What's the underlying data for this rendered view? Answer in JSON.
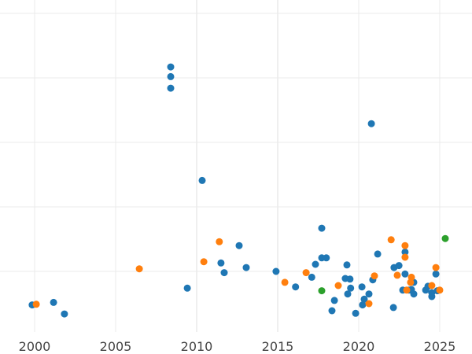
{
  "chart_data": {
    "type": "scatter",
    "title": "",
    "xlabel": "",
    "ylabel": "",
    "xlim": [
      1998.15,
      2026.5
    ],
    "ylim": [
      0,
      5.2
    ],
    "x_ticks": [
      2000,
      2005,
      2010,
      2015,
      2020,
      2025
    ],
    "x_tick_labels": [
      "2000",
      "2005",
      "2010",
      "2015",
      "2020",
      "2025"
    ],
    "y_gridlines": [
      1,
      2,
      3,
      4,
      5
    ],
    "y_tick_labels_visible": false,
    "grid": true,
    "legend": null,
    "series": [
      {
        "name": "blue",
        "color": "#1f77b4",
        "points": [
          [
            1999.85,
            0.48
          ],
          [
            2001.17,
            0.52
          ],
          [
            2001.84,
            0.34
          ],
          [
            2008.4,
            4.17
          ],
          [
            2008.4,
            4.02
          ],
          [
            2008.4,
            3.84
          ],
          [
            2009.42,
            0.74
          ],
          [
            2010.34,
            2.41
          ],
          [
            2011.5,
            1.13
          ],
          [
            2011.7,
            0.98
          ],
          [
            2012.62,
            1.4
          ],
          [
            2013.06,
            1.06
          ],
          [
            2014.9,
            1.0
          ],
          [
            2016.1,
            0.76
          ],
          [
            2017.1,
            0.91
          ],
          [
            2017.33,
            1.11
          ],
          [
            2017.72,
            1.67
          ],
          [
            2017.72,
            1.21
          ],
          [
            2018.0,
            1.21
          ],
          [
            2018.35,
            0.39
          ],
          [
            2018.5,
            0.55
          ],
          [
            2019.17,
            0.89
          ],
          [
            2019.27,
            1.1
          ],
          [
            2019.46,
            0.88
          ],
          [
            2019.5,
            0.74
          ],
          [
            2019.32,
            0.65
          ],
          [
            2019.81,
            0.35
          ],
          [
            2020.2,
            0.76
          ],
          [
            2020.24,
            0.48
          ],
          [
            2020.34,
            0.57
          ],
          [
            2020.63,
            0.65
          ],
          [
            2020.78,
            3.29
          ],
          [
            2020.87,
            0.87
          ],
          [
            2021.17,
            1.27
          ],
          [
            2022.14,
            0.44
          ],
          [
            2022.18,
            1.06
          ],
          [
            2022.48,
            1.09
          ],
          [
            2022.72,
            0.71
          ],
          [
            2022.86,
            1.3
          ],
          [
            2022.86,
            0.96
          ],
          [
            2023.1,
            0.71
          ],
          [
            2023.25,
            0.72
          ],
          [
            2023.4,
            0.65
          ],
          [
            2023.4,
            0.83
          ],
          [
            2024.13,
            0.71
          ],
          [
            2024.27,
            0.77
          ],
          [
            2024.51,
            0.61
          ],
          [
            2024.51,
            0.67
          ],
          [
            2024.76,
            0.96
          ],
          [
            2024.85,
            0.7
          ]
        ]
      },
      {
        "name": "orange",
        "color": "#ff7f0e",
        "points": [
          [
            2000.1,
            0.49
          ],
          [
            2006.46,
            1.04
          ],
          [
            2010.44,
            1.15
          ],
          [
            2011.4,
            1.46
          ],
          [
            2015.44,
            0.83
          ],
          [
            2016.75,
            0.98
          ],
          [
            2018.74,
            0.78
          ],
          [
            2020.63,
            0.5
          ],
          [
            2020.97,
            0.93
          ],
          [
            2022.0,
            1.49
          ],
          [
            2022.38,
            0.94
          ],
          [
            2022.86,
            1.4
          ],
          [
            2022.86,
            1.22
          ],
          [
            2022.96,
            0.71
          ],
          [
            2023.25,
            0.91
          ],
          [
            2023.2,
            0.83
          ],
          [
            2024.51,
            0.78
          ],
          [
            2024.76,
            1.06
          ],
          [
            2025.0,
            0.71
          ]
        ]
      },
      {
        "name": "green",
        "color": "#2ca02c",
        "points": [
          [
            2017.72,
            0.7
          ],
          [
            2025.34,
            1.51
          ]
        ]
      }
    ]
  },
  "style": {
    "grid_color": "#ebebeb",
    "background": "#ffffff",
    "tick_label_color": "#444444",
    "marker_radius": 4.5
  }
}
